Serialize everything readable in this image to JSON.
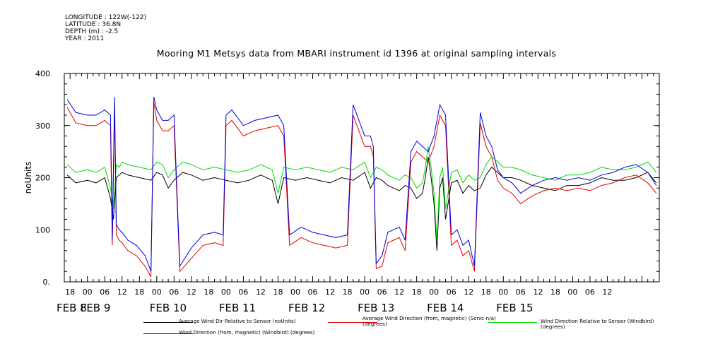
{
  "metadata": [
    "LONGITUDE : 122W(-122)",
    "LATITUDE : 36.8N",
    "DEPTH (m) : -2.5",
    "YEAR : 2011"
  ],
  "chart_data": {
    "type": "line",
    "title": "Mooring M1 Metsys data from MBARI instrument id 1396 at original sampling intervals",
    "ylabel": "noUnits",
    "xlabel": "",
    "ylim": [
      0,
      400
    ],
    "xlim_hours": [
      -8,
      198
    ],
    "y_ticks": [
      0,
      100,
      200,
      300,
      400
    ],
    "y_tick_labels": [
      "0.",
      "100",
      "200",
      "300",
      "400"
    ],
    "hour_tick_labels": [
      "18",
      "00",
      "06",
      "12",
      "18",
      "00",
      "06",
      "12",
      "18",
      "00",
      "06",
      "12",
      "18",
      "00",
      "06",
      "12",
      "18",
      "00",
      "06",
      "12",
      "18",
      "00",
      "06",
      "12",
      "18",
      "00",
      "06",
      "12",
      "18",
      "00",
      "06",
      "12"
    ],
    "day_labels": [
      "FEB 8",
      "FEB 9",
      "FEB 10",
      "FEB 11",
      "FEB 12",
      "FEB 13",
      "FEB 14",
      "FEB 15"
    ],
    "grid": false,
    "legend_position": "bottom",
    "series": [
      {
        "name": "Average Wind Dir Relative to Sensor (noUnits)",
        "color": "#000000",
        "x": [
          -7,
          -4,
          0,
          3,
          6,
          8,
          9,
          10,
          11,
          12,
          14,
          18,
          22,
          24,
          26,
          28,
          30,
          33,
          36,
          40,
          44,
          48,
          52,
          56,
          60,
          64,
          66,
          68,
          72,
          76,
          80,
          84,
          88,
          92,
          96,
          98,
          100,
          102,
          104,
          106,
          108,
          110,
          112,
          114,
          116,
          117,
          118,
          119,
          120,
          121,
          122,
          123,
          124,
          126,
          128,
          130,
          132,
          134,
          136,
          138,
          140,
          142,
          144,
          147,
          150,
          154,
          158,
          162,
          166,
          170,
          174,
          178,
          182,
          186,
          190,
          194,
          197
        ],
        "y": [
          205,
          190,
          195,
          190,
          200,
          160,
          120,
          200,
          205,
          210,
          205,
          200,
          195,
          210,
          205,
          180,
          195,
          210,
          205,
          195,
          200,
          195,
          190,
          195,
          205,
          195,
          150,
          200,
          195,
          200,
          195,
          190,
          200,
          195,
          210,
          180,
          200,
          195,
          185,
          180,
          175,
          185,
          180,
          160,
          170,
          200,
          240,
          200,
          150,
          60,
          180,
          200,
          120,
          190,
          195,
          170,
          185,
          175,
          180,
          205,
          220,
          210,
          200,
          200,
          195,
          185,
          180,
          175,
          185,
          185,
          190,
          200,
          195,
          195,
          200,
          210,
          190
        ]
      },
      {
        "name": "Average Wind Direction (from, magnetic) (Sonic-n/a) (degrees)",
        "color": "#e00000",
        "x": [
          -7,
          -4,
          0,
          3,
          6,
          8,
          8.6,
          9.4,
          10,
          11,
          12,
          14,
          17,
          20,
          22,
          23,
          24,
          26,
          28,
          30,
          32,
          36,
          40,
          44,
          47,
          48,
          50,
          54,
          58,
          62,
          66,
          68,
          70,
          74,
          78,
          82,
          86,
          90,
          92,
          96,
          98,
          99,
          100,
          102,
          104,
          106,
          108,
          110,
          112,
          114,
          116,
          118,
          120,
          122,
          124,
          126,
          128,
          130,
          132,
          134,
          136,
          138,
          140,
          142,
          144,
          147,
          150,
          154,
          158,
          162,
          166,
          170,
          174,
          178,
          182,
          186,
          190,
          194,
          197
        ],
        "y": [
          335,
          305,
          300,
          300,
          310,
          300,
          70,
          340,
          90,
          80,
          75,
          60,
          50,
          30,
          10,
          345,
          310,
          290,
          290,
          300,
          20,
          45,
          70,
          75,
          70,
          300,
          310,
          280,
          290,
          295,
          300,
          280,
          70,
          85,
          75,
          70,
          65,
          70,
          320,
          260,
          260,
          240,
          25,
          30,
          75,
          80,
          85,
          60,
          230,
          250,
          240,
          230,
          260,
          320,
          300,
          70,
          80,
          50,
          60,
          20,
          305,
          260,
          240,
          195,
          180,
          170,
          150,
          165,
          175,
          180,
          175,
          180,
          175,
          185,
          190,
          200,
          205,
          190,
          170
        ]
      },
      {
        "name": "Wind Direction Relative to Sensor (Windbird) (degrees)",
        "color": "#00dd00",
        "x": [
          -7,
          -4,
          0,
          3,
          6,
          8,
          9,
          10,
          11,
          12,
          14,
          18,
          22,
          24,
          26,
          28,
          30,
          33,
          36,
          40,
          44,
          48,
          52,
          56,
          60,
          64,
          66,
          68,
          72,
          76,
          80,
          84,
          88,
          92,
          96,
          98,
          100,
          102,
          104,
          106,
          108,
          110,
          112,
          114,
          116,
          117,
          118,
          119,
          120,
          121,
          122,
          123,
          124,
          126,
          128,
          130,
          132,
          134,
          136,
          138,
          140,
          142,
          144,
          147,
          150,
          154,
          158,
          162,
          166,
          170,
          174,
          178,
          182,
          186,
          190,
          194,
          197
        ],
        "y": [
          225,
          210,
          215,
          210,
          220,
          180,
          140,
          225,
          220,
          230,
          225,
          220,
          215,
          230,
          225,
          200,
          215,
          230,
          225,
          215,
          220,
          215,
          210,
          215,
          225,
          215,
          170,
          220,
          215,
          220,
          215,
          210,
          220,
          215,
          230,
          200,
          220,
          215,
          205,
          200,
          195,
          205,
          200,
          180,
          190,
          220,
          260,
          220,
          170,
          80,
          200,
          220,
          140,
          210,
          215,
          190,
          205,
          195,
          200,
          225,
          240,
          230,
          220,
          220,
          215,
          205,
          200,
          195,
          205,
          205,
          210,
          220,
          215,
          215,
          220,
          230,
          210
        ]
      },
      {
        "name": "Wind Direction (from, magnetic) (Windbird) (degrees)",
        "color": "#0000dd",
        "x": [
          -7,
          -4,
          0,
          3,
          6,
          8,
          8.6,
          9.4,
          10,
          11,
          12,
          14,
          17,
          20,
          22,
          23,
          24,
          26,
          28,
          30,
          32,
          36,
          40,
          44,
          47,
          48,
          50,
          54,
          58,
          62,
          66,
          68,
          70,
          74,
          78,
          82,
          86,
          90,
          92,
          96,
          98,
          99,
          100,
          102,
          104,
          106,
          108,
          110,
          112,
          114,
          116,
          118,
          120,
          122,
          124,
          126,
          128,
          130,
          132,
          134,
          136,
          138,
          140,
          142,
          144,
          147,
          150,
          154,
          158,
          162,
          166,
          170,
          174,
          178,
          182,
          186,
          190,
          194,
          197
        ],
        "y": [
          350,
          325,
          320,
          320,
          330,
          320,
          80,
          355,
          110,
          100,
          95,
          80,
          70,
          50,
          20,
          355,
          330,
          310,
          310,
          320,
          30,
          65,
          90,
          95,
          90,
          320,
          330,
          300,
          310,
          315,
          320,
          300,
          90,
          105,
          95,
          90,
          85,
          90,
          340,
          280,
          280,
          260,
          35,
          50,
          95,
          100,
          105,
          80,
          250,
          270,
          260,
          250,
          280,
          340,
          320,
          90,
          100,
          70,
          80,
          30,
          325,
          280,
          260,
          215,
          200,
          190,
          170,
          185,
          195,
          200,
          195,
          200,
          195,
          205,
          210,
          220,
          225,
          210,
          185
        ]
      }
    ]
  }
}
